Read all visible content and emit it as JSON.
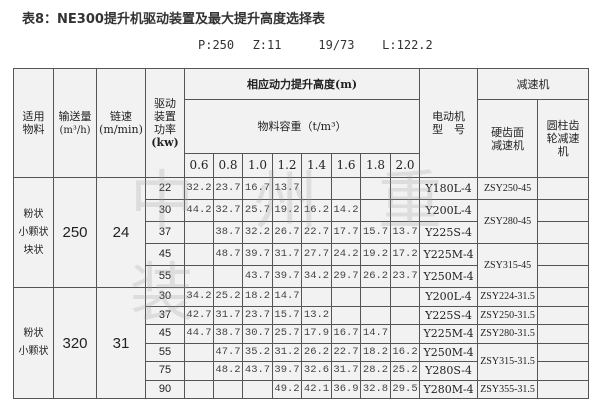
{
  "title": "表8：NE300提升机驱动装置及最大提升高度选择表",
  "params": "P:250  Z:11    19/73   L:122.2",
  "watermark": "中州重装",
  "header": {
    "material": "适用物料",
    "capacity": "输送量",
    "capacity_unit": "(m³/h)",
    "speed": "链速",
    "speed_unit": "(m/min)",
    "power": "驱动装置功率",
    "power_unit": "(kw)",
    "height": "相应动力提升高度(m)",
    "density": "物料容重（t/m³）",
    "densities": [
      "0.6",
      "0.8",
      "1.0",
      "1.2",
      "1.4",
      "1.6",
      "1.8",
      "2.0"
    ],
    "motor": "电动机型　号",
    "reducer": "减速机",
    "hard_reducer": "硬齿面减速机",
    "cyl_reducer": "圆柱齿轮减速机"
  },
  "groups": [
    {
      "material": "粉状\n小颗状\n块状",
      "capacity": "250",
      "speed": "24",
      "rows": [
        {
          "power": "22",
          "h": [
            "32.2",
            "23.7",
            "16.7",
            "13.7",
            "",
            "",
            "",
            ""
          ],
          "motor": "Y180L-4"
        },
        {
          "power": "30",
          "h": [
            "44.2",
            "32.7",
            "25.7",
            "19.2",
            "16.2",
            "14.2",
            "",
            ""
          ],
          "motor": "Y200L-4"
        },
        {
          "power": "37",
          "h": [
            "",
            "38.7",
            "32.2",
            "26.7",
            "22.7",
            "17.7",
            "15.7",
            "13.7"
          ],
          "motor": "Y225S-4"
        },
        {
          "power": "45",
          "h": [
            "",
            "48.7",
            "39.7",
            "31.7",
            "27.7",
            "24.2",
            "19.2",
            "17.2"
          ],
          "motor": "Y225M-4"
        },
        {
          "power": "55",
          "h": [
            "",
            "",
            "43.7",
            "39.7",
            "34.2",
            "29.7",
            "26.2",
            "23.7"
          ],
          "motor": "Y250M-4"
        }
      ],
      "reducers": [
        {
          "name": "ZSY250-45",
          "span": 1
        },
        {
          "name": "ZSY280-45",
          "span": 2
        },
        {
          "name": "ZSY315-45",
          "span": 2
        }
      ]
    },
    {
      "material": "粉状\n小颗状",
      "capacity": "320",
      "speed": "31",
      "rows": [
        {
          "power": "30",
          "h": [
            "34.2",
            "25.2",
            "18.2",
            "14.7",
            "",
            "",
            "",
            ""
          ],
          "motor": "Y200L-4"
        },
        {
          "power": "37",
          "h": [
            "42.7",
            "31.7",
            "23.7",
            "15.7",
            "13.2",
            "",
            "",
            ""
          ],
          "motor": "Y225S-4"
        },
        {
          "power": "45",
          "h": [
            "44.7",
            "38.7",
            "30.7",
            "25.7",
            "17.9",
            "16.7",
            "14.7",
            ""
          ],
          "motor": "Y225M-4"
        },
        {
          "power": "55",
          "h": [
            "",
            "47.7",
            "35.2",
            "31.2",
            "26.2",
            "22.7",
            "18.2",
            "16.2"
          ],
          "motor": "Y250M-4"
        },
        {
          "power": "75",
          "h": [
            "",
            "48.2",
            "43.7",
            "39.7",
            "32.6",
            "31.7",
            "28.2",
            "25.2"
          ],
          "motor": "Y280S-4"
        },
        {
          "power": "90",
          "h": [
            "",
            "",
            "",
            "49.2",
            "42.1",
            "36.9",
            "32.8",
            "29.5"
          ],
          "motor": "Y280M-4"
        }
      ],
      "reducers": [
        {
          "name": "ZSY224-31.5",
          "span": 1
        },
        {
          "name": "ZSY250-31.5",
          "span": 1
        },
        {
          "name": "ZSY280-31.5",
          "span": 1
        },
        {
          "name": "ZSY315-31.5",
          "span": 2
        },
        {
          "name": "ZSY355-31.5",
          "span": 1
        }
      ]
    }
  ]
}
